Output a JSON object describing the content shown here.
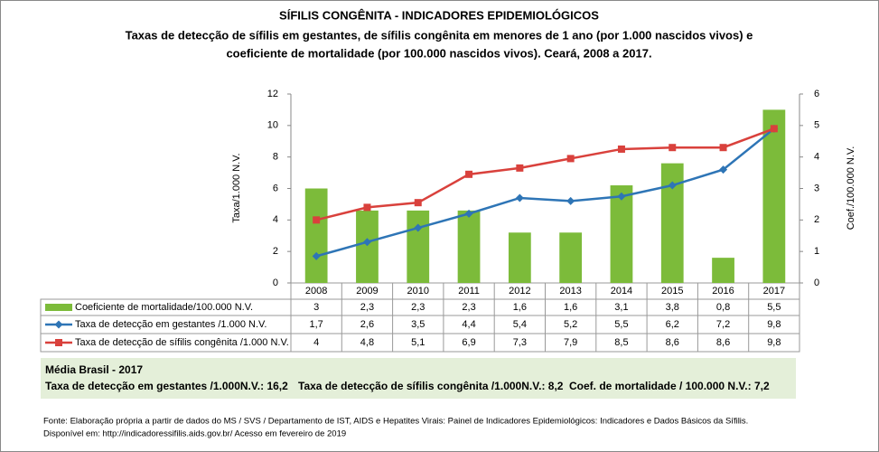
{
  "chart_data": {
    "type": "bar-line-table",
    "title": "SÍFILIS CONGÊNITA - INDICADORES EPIDEMIOLÓGICOS",
    "subtitle": [
      "Taxas de detecção de sífilis em gestantes, de sífilis congênita em menores de 1 ano (por 1.000 nascidos vivos) e",
      "coeficiente de mortalidade (por 100.000 nascidos vivos). Ceará, 2008 a 2017."
    ],
    "y_label": "Taxa/1.000 N.V.",
    "y2_label": "Coef./100.000 N.V.",
    "categories": [
      "2008",
      "2009",
      "2010",
      "2011",
      "2012",
      "2013",
      "2014",
      "2015",
      "2016",
      "2017"
    ],
    "ylim": [
      0,
      12
    ],
    "yticks": [
      0,
      2,
      4,
      6,
      8,
      10,
      12
    ],
    "y2lim": [
      0,
      6
    ],
    "y2ticks": [
      0,
      1,
      2,
      3,
      4,
      5,
      6
    ],
    "series": [
      {
        "name": "Coeficiente de mortalidade/100.000 N.V.",
        "kind": "bar",
        "axis": "y2",
        "color": "#7cbb3a",
        "values": [
          3,
          2.3,
          2.3,
          2.3,
          1.6,
          1.6,
          3.1,
          3.8,
          0.8,
          5.5
        ],
        "value_labels": [
          "3",
          "2,3",
          "2,3",
          "2,3",
          "1,6",
          "1,6",
          "3,1",
          "3,8",
          "0,8",
          "5,5"
        ]
      },
      {
        "name": "Taxa de detecção em gestantes /1.000 N.V.",
        "kind": "line",
        "marker": "diamond",
        "color": "#2e75b6",
        "values": [
          1.7,
          2.6,
          3.5,
          4.4,
          5.4,
          5.2,
          5.5,
          6.2,
          7.2,
          9.8
        ],
        "value_labels": [
          "1,7",
          "2,6",
          "3,5",
          "4,4",
          "5,4",
          "5,2",
          "5,5",
          "6,2",
          "7,2",
          "9,8"
        ]
      },
      {
        "name": "Taxa de detecção de sífilis congênita /1.000 N.V.",
        "kind": "line",
        "marker": "square",
        "color": "#d9413c",
        "values": [
          4,
          4.8,
          5.1,
          6.9,
          7.3,
          7.9,
          8.5,
          8.6,
          8.6,
          9.8
        ],
        "value_labels": [
          "4",
          "4,8",
          "5,1",
          "6,9",
          "7,3",
          "7,9",
          "8,5",
          "8,6",
          "8,6",
          "9,8"
        ]
      }
    ],
    "summary": {
      "title": "Média Brasil - 2017",
      "items": [
        "Taxa de detecção em gestantes /1.000N.V.: 16,2",
        "Taxa de detecção de sífilis congênita /1.000N.V.: 8,2",
        "Coef. de mortalidade / 100.000 N.V.: 7,2"
      ]
    },
    "source": [
      "Fonte: Elaboração própria a partir de dados do MS / SVS / Departamento de IST, AIDS e Hepatites Virais: Painel de Indicadores Epidemiológicos: Indicadores e Dados Básicos da Sífilis.",
      "Disponível em: http://indicadoressifilis.aids.gov.br/   Acesso em fevereiro de 2019"
    ]
  }
}
